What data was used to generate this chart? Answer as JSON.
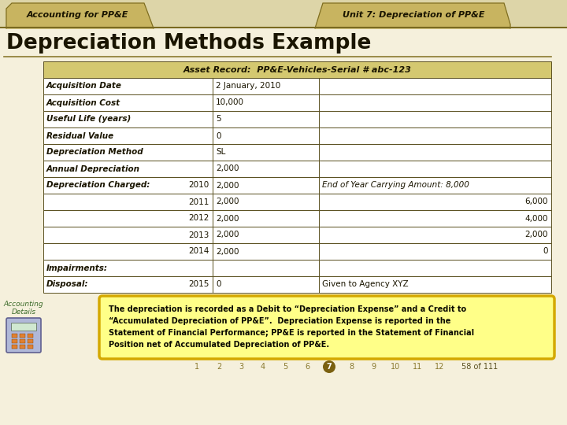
{
  "bg_color": "#ddd5a8",
  "content_bg": "#f5f0dc",
  "tab1_text": "Accounting for PP&E",
  "tab2_text": "Unit 7: Depreciation of PP&E",
  "title": "Depreciation Methods Example",
  "table_header": "Asset Record:  PP&E-Vehicles-Serial # abc-123",
  "table_header_bg": "#d4c870",
  "table_border_color": "#5a5020",
  "rows": [
    {
      "label": "Acquisition Date",
      "col2": "2 January, 2010",
      "col3": "",
      "type": "normal"
    },
    {
      "label": "Acquisition Cost",
      "col2": "10,000",
      "col3": "",
      "type": "normal"
    },
    {
      "label": "Useful Life (years)",
      "col2": "5",
      "col3": "",
      "type": "normal"
    },
    {
      "label": "Residual Value",
      "col2": "0",
      "col3": "",
      "type": "normal"
    },
    {
      "label": "Depreciation Method",
      "col2": "SL",
      "col3": "",
      "type": "normal"
    },
    {
      "label": "Annual Depreciation",
      "col2": "2,000",
      "col3": "",
      "type": "normal"
    },
    {
      "label": "Depreciation Charged:",
      "year": "2010",
      "col2": "2,000",
      "col3": "End of Year Carrying Amount: 8,000",
      "type": "charged_first"
    },
    {
      "label": "",
      "year": "2011",
      "col2": "2,000",
      "col3": "6,000",
      "type": "charged_rest"
    },
    {
      "label": "",
      "year": "2012",
      "col2": "2,000",
      "col3": "4,000",
      "type": "charged_rest"
    },
    {
      "label": "",
      "year": "2013",
      "col2": "2,000",
      "col3": "2,000",
      "type": "charged_rest"
    },
    {
      "label": "",
      "year": "2014",
      "col2": "2,000",
      "col3": "0",
      "type": "charged_rest"
    },
    {
      "label": "Impairments:",
      "col2": "",
      "col3": "",
      "type": "normal"
    },
    {
      "label": "Disposal:",
      "year": "2015",
      "col2": "0",
      "col3": "Given to Agency XYZ",
      "type": "disposal"
    }
  ],
  "note_text_lines": [
    "The depreciation is recorded as a Debit to “Depreciation Expense” and a Credit to",
    "“Accumulated Depreciation of PP&E”.  Depreciation Expense is reported in the",
    "Statement of Financial Performance; PP&E is reported in the Statement of Financial",
    "Position net of Accumulated Depreciation of PP&E."
  ],
  "note_bg": "#ffff88",
  "note_border": "#d4a800",
  "sidebar_label1": "Accounting",
  "sidebar_label2": "Details",
  "page_numbers": [
    "1",
    "2",
    "3",
    "4",
    "5",
    "6",
    "7",
    "8",
    "9",
    "10",
    "11",
    "12"
  ],
  "current_page": 7,
  "page_info": "58 of 111",
  "font_color": "#1a1500",
  "tab_bg": "#c8b460",
  "tab_border": "#7a6a20",
  "white": "#ffffff"
}
